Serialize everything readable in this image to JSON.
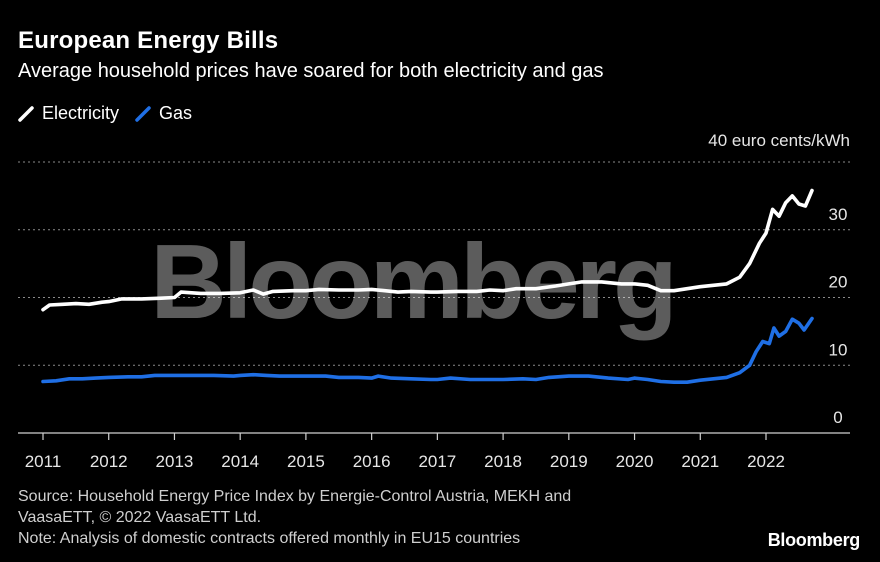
{
  "header": {
    "title": "European Energy Bills",
    "subtitle": "Average household prices have soared for both electricity and gas"
  },
  "legend": [
    {
      "label": "Electricity",
      "color": "#ffffff"
    },
    {
      "label": "Gas",
      "color": "#1f6fe5"
    }
  ],
  "footer": {
    "source_line1": "Source: Household Energy Price Index by Energie-Control Austria, MEKH and",
    "source_line2": "VaasaETT, © 2022 VaasaETT Ltd.",
    "note": "Note: Analysis of domestic contracts offered monthly in EU15 countries",
    "logo": "Bloomberg"
  },
  "watermark": "Bloomberg",
  "chart_data": {
    "type": "line",
    "title": "European Energy Bills",
    "subtitle": "Average household prices have soared for both electricity and gas",
    "unit_label": "40 euro cents/kWh",
    "ylim": [
      0,
      40
    ],
    "yticks": [
      {
        "value": 40,
        "label": "40 euro cents/kWh"
      },
      {
        "value": 30,
        "label": "30"
      },
      {
        "value": 20,
        "label": "20"
      },
      {
        "value": 10,
        "label": "10"
      },
      {
        "value": 0,
        "label": "0"
      }
    ],
    "xlim": [
      2011,
      2023.2
    ],
    "xticks": [
      "2011",
      "2012",
      "2013",
      "2014",
      "2015",
      "2016",
      "2017",
      "2018",
      "2019",
      "2020",
      "2021",
      "2022"
    ],
    "series": [
      {
        "name": "Electricity",
        "color": "#ffffff",
        "points": [
          [
            2011.0,
            18.2
          ],
          [
            2011.1,
            18.9
          ],
          [
            2011.3,
            19.0
          ],
          [
            2011.5,
            19.1
          ],
          [
            2011.7,
            19.0
          ],
          [
            2011.9,
            19.3
          ],
          [
            2012.0,
            19.4
          ],
          [
            2012.2,
            19.8
          ],
          [
            2012.5,
            19.8
          ],
          [
            2012.8,
            19.9
          ],
          [
            2013.0,
            20.0
          ],
          [
            2013.1,
            20.8
          ],
          [
            2013.4,
            20.6
          ],
          [
            2013.7,
            20.6
          ],
          [
            2014.0,
            20.7
          ],
          [
            2014.2,
            21.1
          ],
          [
            2014.35,
            20.5
          ],
          [
            2014.5,
            20.9
          ],
          [
            2014.8,
            21.0
          ],
          [
            2015.0,
            21.0
          ],
          [
            2015.2,
            21.2
          ],
          [
            2015.5,
            21.1
          ],
          [
            2015.8,
            21.1
          ],
          [
            2016.0,
            21.2
          ],
          [
            2016.2,
            21.0
          ],
          [
            2016.4,
            20.8
          ],
          [
            2016.6,
            20.9
          ],
          [
            2016.9,
            20.8
          ],
          [
            2017.0,
            20.8
          ],
          [
            2017.3,
            20.9
          ],
          [
            2017.6,
            20.9
          ],
          [
            2017.8,
            21.1
          ],
          [
            2018.0,
            21.0
          ],
          [
            2018.2,
            21.3
          ],
          [
            2018.5,
            21.3
          ],
          [
            2018.8,
            21.7
          ],
          [
            2019.0,
            22.0
          ],
          [
            2019.2,
            22.3
          ],
          [
            2019.5,
            22.3
          ],
          [
            2019.8,
            22.0
          ],
          [
            2020.0,
            22.0
          ],
          [
            2020.2,
            21.8
          ],
          [
            2020.4,
            21.0
          ],
          [
            2020.6,
            21.0
          ],
          [
            2020.8,
            21.3
          ],
          [
            2021.0,
            21.6
          ],
          [
            2021.2,
            21.8
          ],
          [
            2021.4,
            22.0
          ],
          [
            2021.6,
            23.0
          ],
          [
            2021.75,
            25.0
          ],
          [
            2021.9,
            28.0
          ],
          [
            2022.0,
            29.5
          ],
          [
            2022.1,
            33.0
          ],
          [
            2022.2,
            32.0
          ],
          [
            2022.3,
            34.0
          ],
          [
            2022.4,
            35.0
          ],
          [
            2022.5,
            33.8
          ],
          [
            2022.6,
            33.5
          ],
          [
            2022.7,
            35.8
          ]
        ]
      },
      {
        "name": "Gas",
        "color": "#1f6fe5",
        "points": [
          [
            2011.0,
            7.6
          ],
          [
            2011.2,
            7.7
          ],
          [
            2011.4,
            8.0
          ],
          [
            2011.6,
            8.0
          ],
          [
            2011.8,
            8.1
          ],
          [
            2012.0,
            8.2
          ],
          [
            2012.3,
            8.3
          ],
          [
            2012.5,
            8.3
          ],
          [
            2012.7,
            8.5
          ],
          [
            2013.0,
            8.5
          ],
          [
            2013.3,
            8.5
          ],
          [
            2013.6,
            8.5
          ],
          [
            2013.9,
            8.4
          ],
          [
            2014.0,
            8.5
          ],
          [
            2014.2,
            8.6
          ],
          [
            2014.4,
            8.5
          ],
          [
            2014.6,
            8.4
          ],
          [
            2015.0,
            8.4
          ],
          [
            2015.3,
            8.4
          ],
          [
            2015.5,
            8.2
          ],
          [
            2015.8,
            8.2
          ],
          [
            2016.0,
            8.1
          ],
          [
            2016.1,
            8.4
          ],
          [
            2016.3,
            8.1
          ],
          [
            2016.6,
            8.0
          ],
          [
            2016.9,
            7.9
          ],
          [
            2017.0,
            7.9
          ],
          [
            2017.2,
            8.1
          ],
          [
            2017.5,
            7.9
          ],
          [
            2017.7,
            7.9
          ],
          [
            2018.0,
            7.9
          ],
          [
            2018.3,
            8.0
          ],
          [
            2018.5,
            7.9
          ],
          [
            2018.7,
            8.2
          ],
          [
            2019.0,
            8.4
          ],
          [
            2019.3,
            8.4
          ],
          [
            2019.6,
            8.1
          ],
          [
            2019.9,
            7.9
          ],
          [
            2020.0,
            8.1
          ],
          [
            2020.2,
            7.9
          ],
          [
            2020.4,
            7.6
          ],
          [
            2020.6,
            7.5
          ],
          [
            2020.8,
            7.5
          ],
          [
            2021.0,
            7.8
          ],
          [
            2021.2,
            8.0
          ],
          [
            2021.4,
            8.2
          ],
          [
            2021.6,
            8.9
          ],
          [
            2021.75,
            10.0
          ],
          [
            2021.85,
            12.0
          ],
          [
            2021.95,
            13.5
          ],
          [
            2022.05,
            13.2
          ],
          [
            2022.12,
            15.5
          ],
          [
            2022.2,
            14.3
          ],
          [
            2022.3,
            15.0
          ],
          [
            2022.4,
            16.8
          ],
          [
            2022.5,
            16.2
          ],
          [
            2022.58,
            15.2
          ],
          [
            2022.7,
            16.9
          ]
        ]
      }
    ]
  }
}
